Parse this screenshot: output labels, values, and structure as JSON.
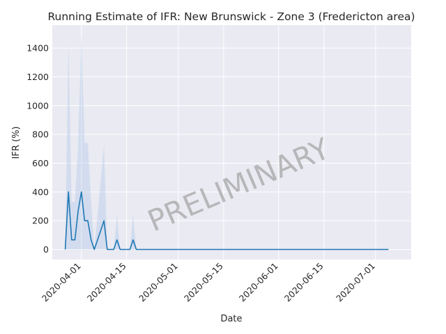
{
  "chart_data": {
    "type": "line",
    "title": "Running Estimate of IFR: New Brunswick - Zone 3 (Fredericton area)",
    "xlabel": "Date",
    "ylabel": "IFR (%)",
    "watermark": "PRELIMINARY",
    "x_ticks": [
      "2020-04-01",
      "2020-04-15",
      "2020-05-01",
      "2020-05-15",
      "2020-06-01",
      "2020-06-15",
      "2020-07-01"
    ],
    "y_ticks": [
      0,
      200,
      400,
      600,
      800,
      1000,
      1200,
      1400
    ],
    "xlim": [
      "2020-03-23",
      "2020-07-12"
    ],
    "ylim": [
      -70,
      1560
    ],
    "grid": true,
    "colors": {
      "line": "#1f77b4",
      "band": "#aec7e8",
      "background": "#eaeaf2",
      "grid": "#ffffff"
    },
    "series": [
      {
        "x": [
          "2020-03-27",
          "2020-03-28",
          "2020-03-29",
          "2020-03-30",
          "2020-03-31",
          "2020-04-01",
          "2020-04-02",
          "2020-04-03",
          "2020-04-04",
          "2020-04-05",
          "2020-04-06",
          "2020-04-07",
          "2020-04-08",
          "2020-04-09",
          "2020-04-10",
          "2020-04-11",
          "2020-04-12",
          "2020-04-13",
          "2020-04-14",
          "2020-04-15",
          "2020-04-16",
          "2020-04-17",
          "2020-04-18",
          "2020-07-05"
        ],
        "values": [
          0,
          400,
          67,
          67,
          267,
          400,
          200,
          200,
          67,
          0,
          67,
          133,
          200,
          0,
          0,
          0,
          67,
          0,
          0,
          0,
          0,
          67,
          0,
          0
        ],
        "lower": [
          0,
          0,
          0,
          0,
          0,
          0,
          0,
          0,
          0,
          0,
          0,
          0,
          0,
          0,
          0,
          0,
          0,
          0,
          0,
          0,
          0,
          0,
          0,
          0
        ],
        "upper": [
          0,
          1440,
          330,
          330,
          720,
          1500,
          740,
          740,
          330,
          0,
          240,
          480,
          730,
          0,
          0,
          0,
          240,
          0,
          0,
          0,
          0,
          240,
          0,
          0
        ]
      }
    ]
  }
}
